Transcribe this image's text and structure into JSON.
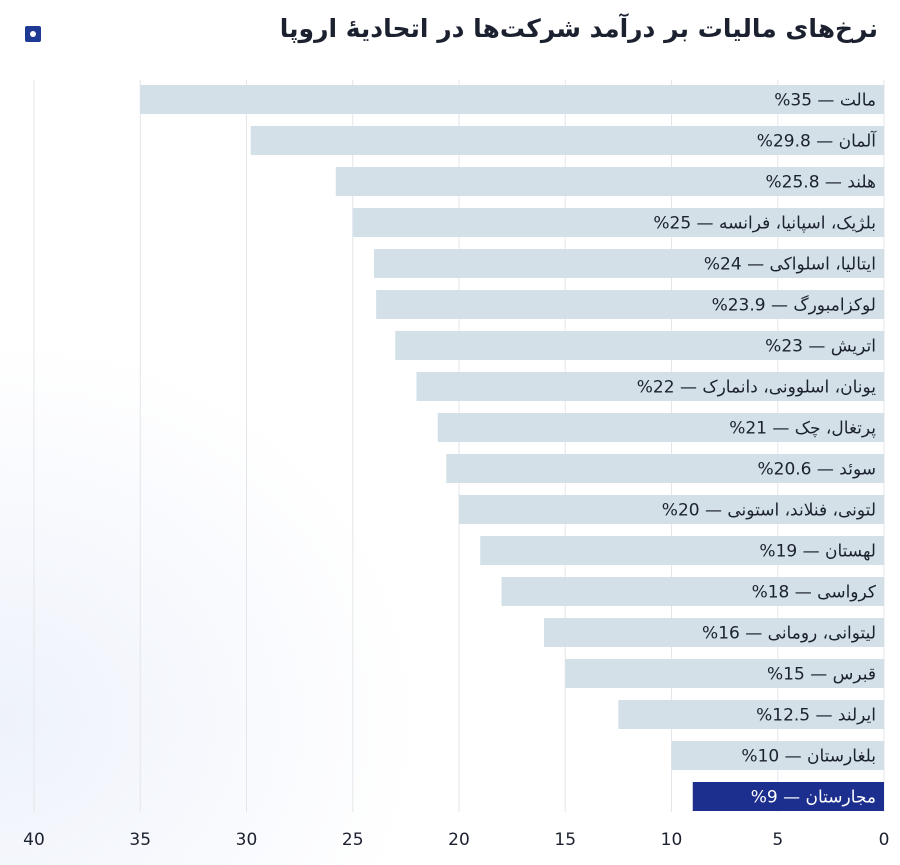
{
  "page": {
    "title": "نرخ‌های مالیات بر درآمد شرکت‌ها در اتحادیهٔ اروپا"
  },
  "colors": {
    "bar": "#d3e0e7",
    "highlight": "#1c2f8f",
    "text": "#1c2130",
    "highlight_text": "#ffffff",
    "grid": "#e3e6ea"
  },
  "chart_data": {
    "type": "bar",
    "orientation": "horizontal",
    "direction": "right-to-left",
    "categories": [
      "مالت — 35%",
      "آلمان — 29.8%",
      "هلند — 25.8%",
      "بلژیک، اسپانیا، فرانسه — 25%",
      "ایتالیا، اسلواکی — 24%",
      "لوکزامبورگ — 23.9%",
      "اتریش — 23%",
      "یونان، اسلوونی، دانمارک — 22%",
      "پرتغال، چک — 21%",
      "سوئد — 20.6%",
      "لتونی، فنلاند، استونی — 20%",
      "لهستان — 19%",
      "کرواسی — 18%",
      "لیتوانی، رومانی — 16%",
      "قبرس — 15%",
      "ایرلند — 12.5%",
      "بلغارستان — 10%",
      "مجارستان — 9%"
    ],
    "values": [
      35,
      29.8,
      25.8,
      25,
      24,
      23.9,
      23,
      22,
      21,
      20.6,
      20,
      19,
      18,
      16,
      15,
      12.5,
      10,
      9
    ],
    "highlight_index": 17,
    "xlim": [
      0,
      40
    ],
    "xticks": [
      0,
      5,
      10,
      15,
      20,
      25,
      30,
      35,
      40
    ],
    "tick_labels": [
      "0",
      "5",
      "10",
      "15",
      "20",
      "25",
      "30",
      "35",
      "40"
    ],
    "grid": true,
    "title": "نرخ‌های مالیات بر درآمد شرکت‌ها در اتحادیهٔ اروپا",
    "xlabel": "",
    "ylabel": ""
  }
}
